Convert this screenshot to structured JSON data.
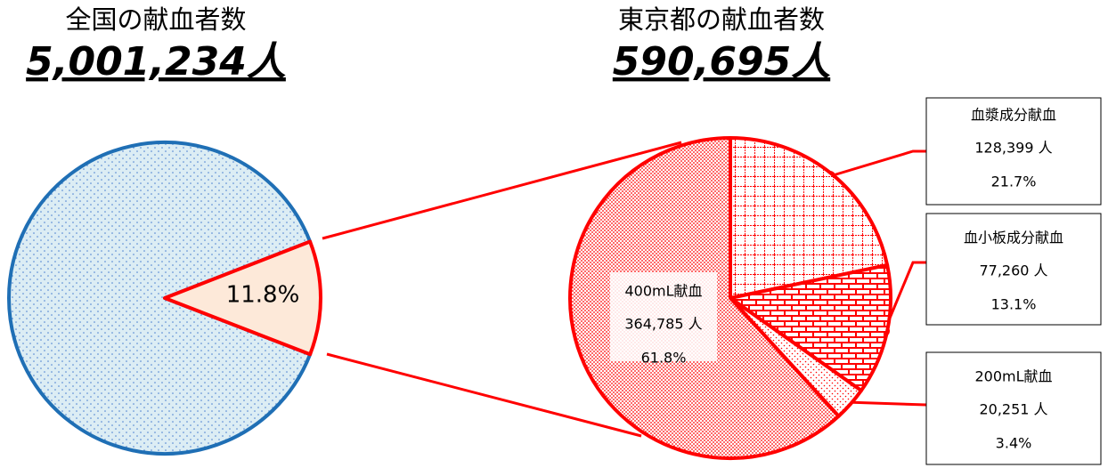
{
  "chart_data": [
    {
      "type": "pie",
      "title": "全国の献血者数",
      "subtitle": "5,001,234人",
      "categories": [
        null,
        null
      ],
      "values": [
        88.2,
        11.8
      ],
      "value_labels": [
        null,
        "11.8%"
      ],
      "colors": [
        "#dcedf4",
        "#fde9d9"
      ],
      "edge_colors": [
        "#1f6fb5",
        "#ff0000"
      ]
    },
    {
      "type": "pie",
      "title": "東京都の献血者数",
      "subtitle": "590,695人",
      "categories": [
        "血漿成分献血",
        "血小板成分献血",
        "200mL献血",
        "400mL献血"
      ],
      "values": [
        21.7,
        13.1,
        3.4,
        61.8
      ],
      "value_labels": [
        "21.7%",
        "13.1%",
        "3.4%",
        "61.8%"
      ],
      "counts": [
        128399,
        77260,
        20251,
        364785
      ],
      "count_labels": [
        "128,399 人",
        "77,260 人",
        "20,251 人",
        "364,785 人"
      ],
      "colors": [
        "#ff0000",
        "#ff0000",
        "#ff0000",
        "#ff0000"
      ],
      "edge_colors": [
        "#ff0000",
        "#ff0000",
        "#ff0000",
        "#ff0000"
      ]
    }
  ]
}
